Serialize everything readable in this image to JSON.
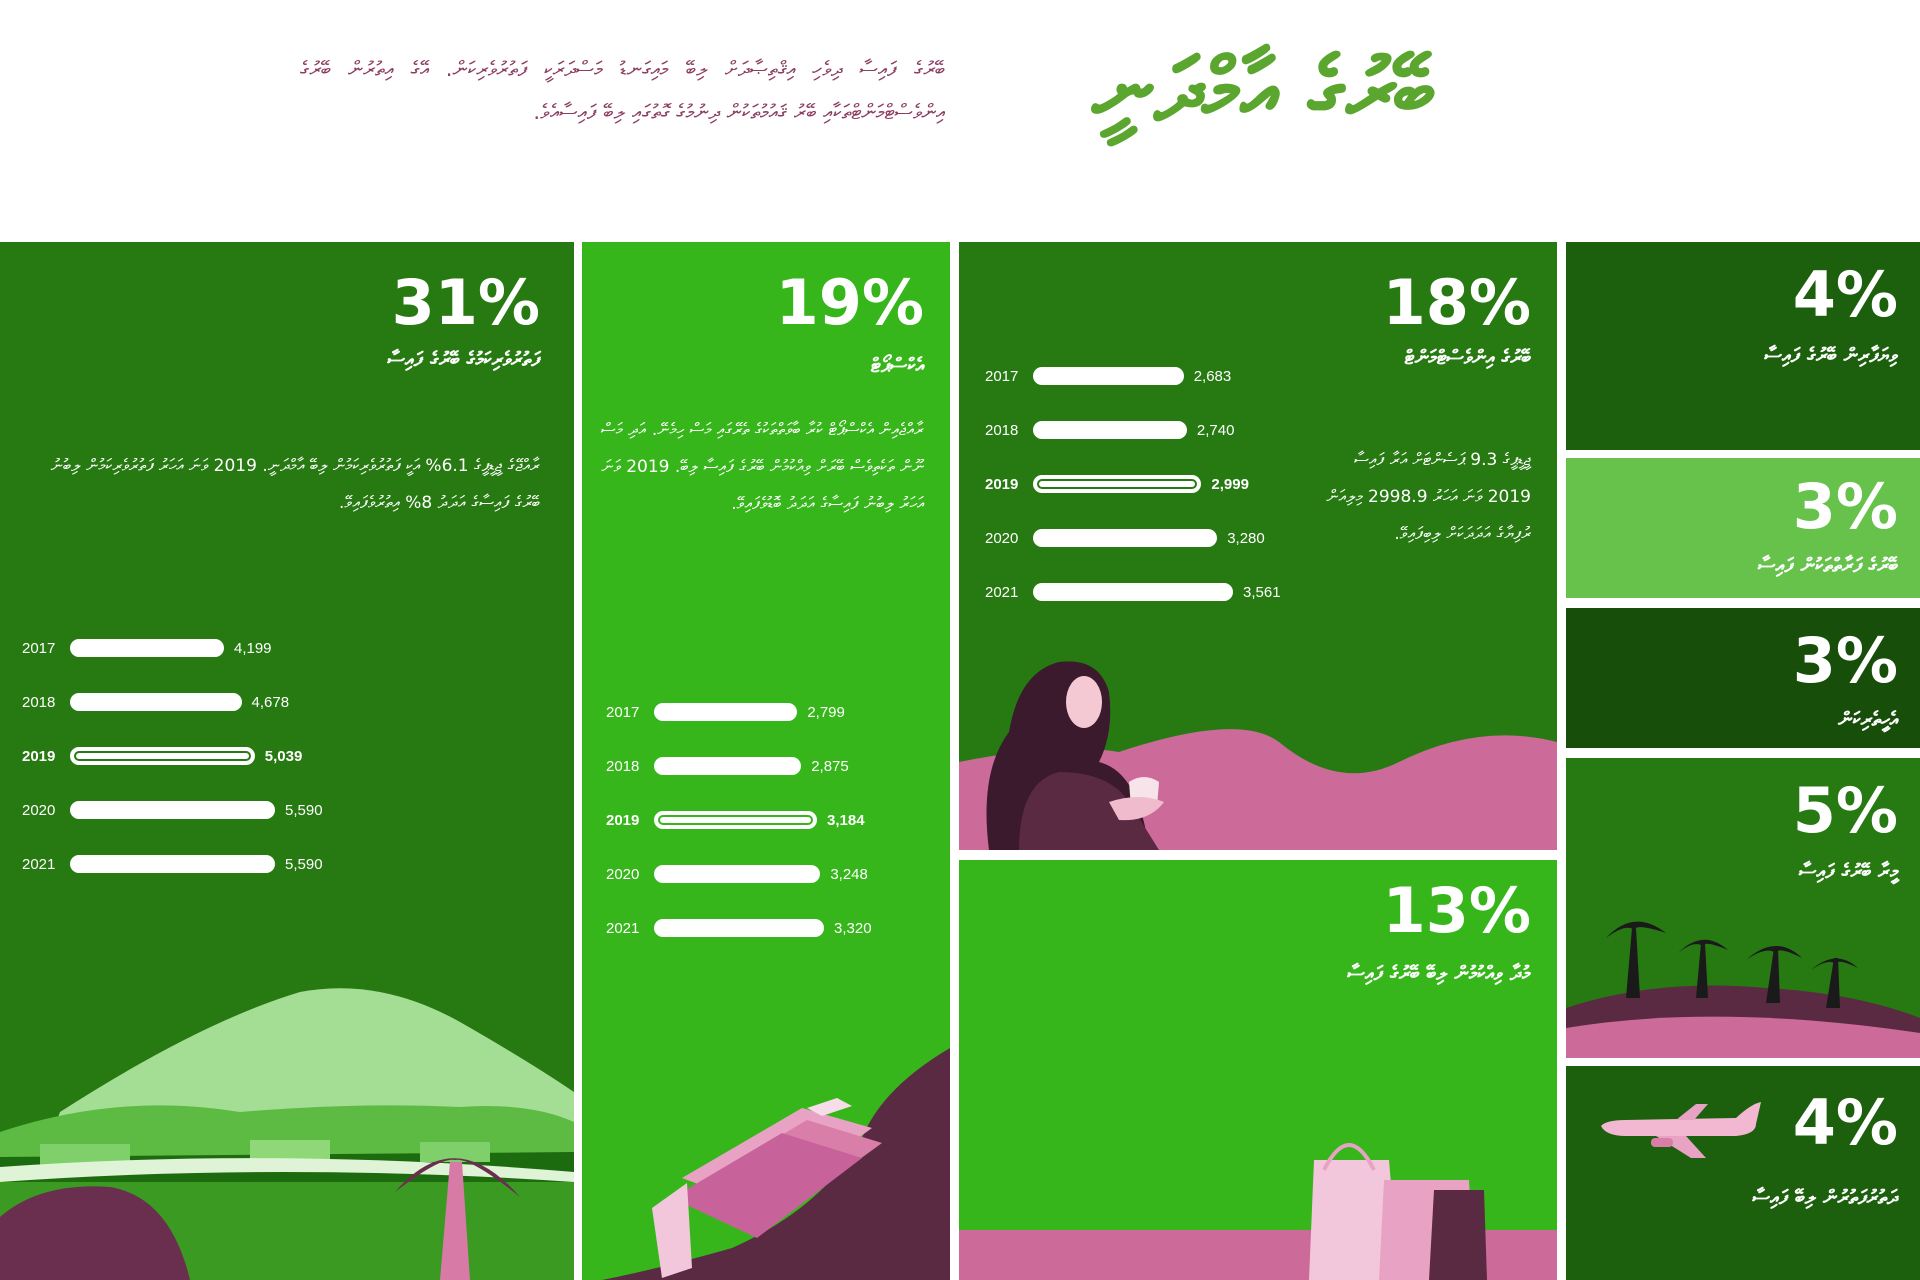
{
  "header": {
    "title": "ބޭރުގެ އާމްދަނީ",
    "intro": "ބޭރުގެ ފައިސާ ދިވެހި އިޤްތިޞާދަށް ލިބޭ މައިގަނޑު މަސްދަރަކީ ފަތުރުވެރިކަން. އޭގެ އިތުރުން ބޭރުގެ އިންވެސްޓްމަންޓްތަކާއި ބޭރު ޤައުމުތަކުން ދިނުމުގެ ގޮތުގައި ލިބޭ ފައިސާއެވެ."
  },
  "colors": {
    "dark_green": "#277a12",
    "bright_green": "#37b61b",
    "deep_green": "#1c5f0d",
    "darkest_green": "#174e0a",
    "light_green": "#66c24b",
    "title_green": "#5aa62f",
    "intro_purple": "#8c3e62",
    "pink": "#cc6b9a",
    "plum": "#5a2a42"
  },
  "panels": {
    "tourism": {
      "percent": "31%",
      "label": "ފަތުރުވެރިކަމުގެ ބޭރުގެ ފައިސާ",
      "desc": "ރާއްޖޭގެ ޖީޑީޕީގެ 6.1% އަކީ ފަތުރުވެރިކަމުން ލިބޭ އާމްދަނީ. 2019 ވަނަ އަހަރު ފަތުރުވެރިކަމުން ލިބުނު ބޭރުގެ ފައިސާގެ އަދަދު 8% އިތުރުވެފައިވޭ."
    },
    "exports": {
      "percent": "19%",
      "label": "އެކްސްޕޯޓް",
      "desc": "ރާއްޖެއިން އެކްސްޕޯޓް ކުރާ ބާވަތްތަކުގެ ތެރޭގައި މަސް ހިމެނޭ. އަދި މަސް ނޫން ތަކެތިވެސް ބޭރަށް ވިއްކުމުން ބޭރުގެ ފައިސާ ލިބޭ. 2019 ވަނަ އަހަރު ލިބުނު ފައިސާގެ އަދަދު ބޮޑުވެފައިވޭ."
    },
    "investment": {
      "percent": "18%",
      "label": "ބޭރުގެ އިންވެސްޓްމަންޓް",
      "desc": "ޖީޑީޕީގެ 9.3 ޕަސެންޓަށް އަރާ ފައިސާ 2019 ވަނަ އަހަރު 2998.9 މިލިއަން ރުފިޔާގެ އަދަދަކަށް ލިބިފައިވޭ."
    },
    "remittances": {
      "percent": "13%",
      "label": "މުދާ ވިއްކުމުން ލިބޭ ބޭރުގެ ފައިސާ"
    },
    "small": [
      {
        "percent": "4%",
        "label": "ވިޔަފާރިން ބޭރުގެ ފައިސާ"
      },
      {
        "percent": "3%",
        "label": "ބޭރުގެ ފަރާތްތަކުން ފައިސާ"
      },
      {
        "percent": "3%",
        "label": "އެހީތެރިކަން"
      },
      {
        "percent": "5%",
        "label": "މީރާ ބޭރުގެ ފައިސާ"
      },
      {
        "percent": "4%",
        "label": "ދަތުރުފަތުރުން ލިބޭ ފައިސާ"
      }
    ]
  },
  "chart_data": [
    {
      "type": "bar",
      "categories": [
        "2017",
        "2018",
        "2019",
        "2020",
        "2021"
      ],
      "values": [
        4199,
        4678,
        5039,
        5590,
        5590
      ],
      "value_labels": [
        "4,199",
        "4,678",
        "5,039",
        "5,590",
        "5,590"
      ],
      "highlight": "2019",
      "xlim": [
        0,
        5590
      ]
    },
    {
      "type": "bar",
      "categories": [
        "2017",
        "2018",
        "2019",
        "2020",
        "2021"
      ],
      "values": [
        2799,
        2875,
        3184,
        3248,
        3320
      ],
      "value_labels": [
        "2,799",
        "2,875",
        "3,184",
        "3,248",
        "3,320"
      ],
      "highlight": "2019",
      "xlim": [
        0,
        3320
      ]
    },
    {
      "type": "bar",
      "categories": [
        "2017",
        "2018",
        "2019",
        "2020",
        "2021"
      ],
      "values": [
        2683,
        2740,
        2999,
        3280,
        3561
      ],
      "value_labels": [
        "2,683",
        "2,740",
        "2,999",
        "3,280",
        "3,561"
      ],
      "highlight": "2019",
      "xlim": [
        0,
        3561
      ]
    }
  ]
}
